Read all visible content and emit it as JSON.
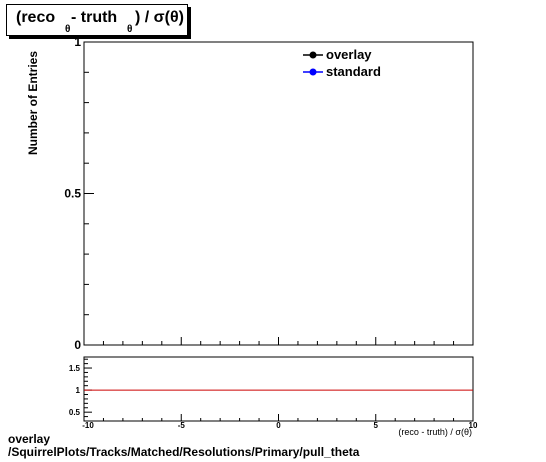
{
  "title": {
    "open": "(reco",
    "sub1": "θ",
    "mid": " - truth",
    "sub2": "θ",
    "close": ") /  σ(θ)"
  },
  "chart_data": [
    {
      "type": "line",
      "ylabel": "Number of Entries",
      "xlim": [
        -10,
        10
      ],
      "ylim": [
        0,
        1
      ],
      "y_tick_labels": [
        "0",
        "0.5",
        "1"
      ],
      "legend_placement": "top-right",
      "series": [
        {
          "name": "overlay",
          "color": "#000000",
          "marker": "filled-circle",
          "values": []
        },
        {
          "name": "standard",
          "color": "#0000ff",
          "marker": "filled-circle",
          "values": []
        }
      ]
    },
    {
      "type": "line",
      "xlabel": "(reco - truth) / σ(θ)",
      "xlim": [
        -10,
        10
      ],
      "ylim": [
        0.3,
        1.75
      ],
      "x_tick_labels": [
        "-10",
        "-5",
        "0",
        "5",
        "10"
      ],
      "y_tick_labels": [
        "0.5",
        "1",
        "1.5"
      ],
      "reference_line": {
        "y": 1,
        "color": "#cc0000"
      }
    }
  ],
  "footer": {
    "line1": "overlay",
    "line2": "/SquirrelPlots/Tracks/Matched/Resolutions/Primary/pull_theta"
  }
}
